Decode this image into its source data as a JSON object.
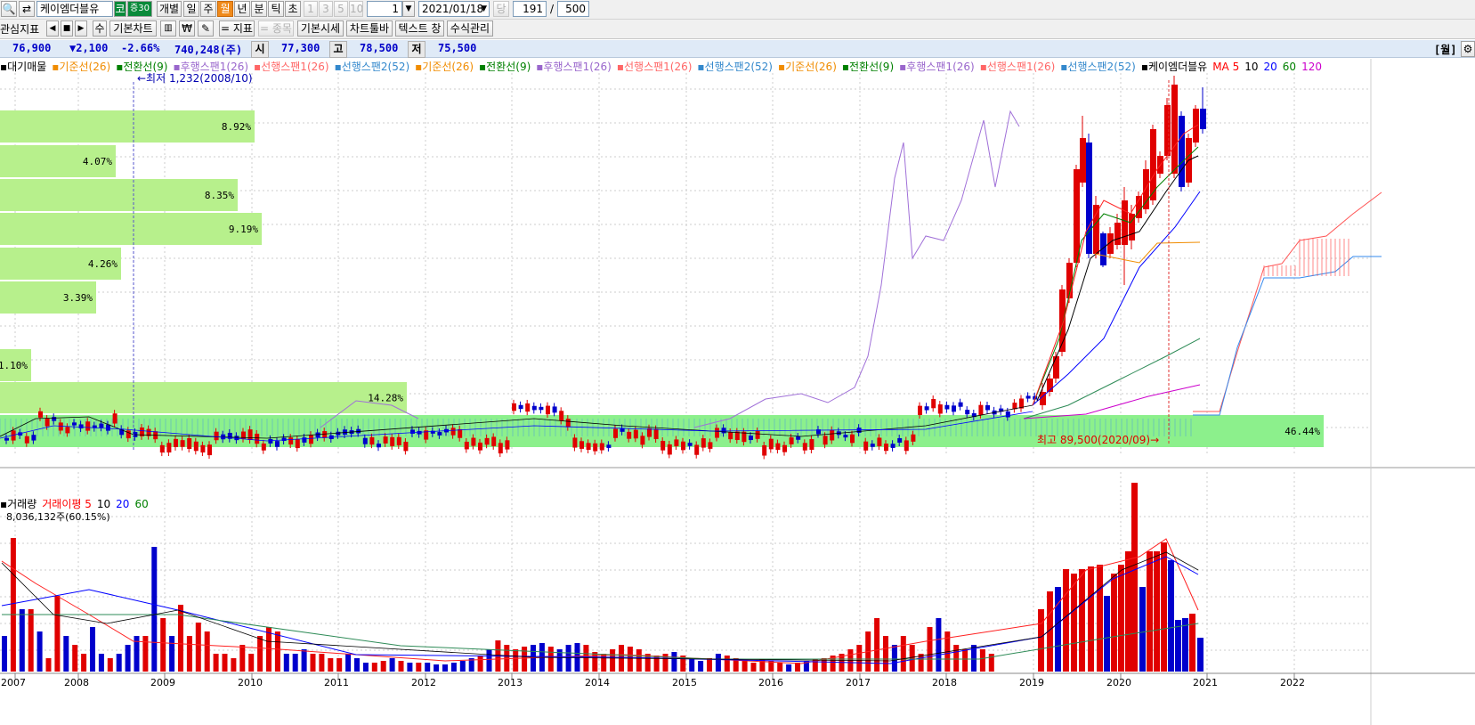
{
  "toolbar1": {
    "stock_name": "케이엠더블유",
    "market_badge": "코",
    "deposit_badge": "증30",
    "tabs": [
      "개별",
      "일",
      "주",
      "월",
      "년",
      "분",
      "틱",
      "초"
    ],
    "selected_tab": "월",
    "n_buttons": [
      "1",
      "3",
      "5",
      "10"
    ],
    "unit_select": "1",
    "date": "2021/01/18",
    "date_button": "당",
    "count": "191",
    "separator": "/",
    "total": "500"
  },
  "toolbar2": {
    "indicator_label": "관심지표",
    "basic_chart": "기본차트",
    "won_button": "₩",
    "minus_indicator": "= 지표",
    "minus_stock": "= 종목",
    "basic_quote": "기본시세",
    "chart_toolbar": "차트툴바",
    "text_window": "텍스트 창",
    "formula_manage": "수식관리",
    "sort_label": "수"
  },
  "quote": {
    "price": "76,900",
    "change": "▼2,100",
    "change_pct": "-2.66%",
    "volume": "740,248(주)",
    "open_label": "시",
    "open": "77,300",
    "high_label": "고",
    "high": "78,500",
    "low_label": "저",
    "low": "75,500",
    "period_label": "[월]"
  },
  "legend_price": [
    {
      "text": "대기매물",
      "color": "#000000"
    },
    {
      "text": "기준선(26)",
      "color": "#f08c00"
    },
    {
      "text": "전환선(9)",
      "color": "#008000"
    },
    {
      "text": "후행스팬1(26)",
      "color": "#9966cc"
    },
    {
      "text": "선행스팬1(26)",
      "color": "#ff6666"
    },
    {
      "text": "선행스팬2(52)",
      "color": "#3388cc"
    },
    {
      "text": "기준선(26)",
      "color": "#f08c00"
    },
    {
      "text": "전환선(9)",
      "color": "#008000"
    },
    {
      "text": "후행스팬1(26)",
      "color": "#9966cc"
    },
    {
      "text": "선행스팬1(26)",
      "color": "#ff6666"
    },
    {
      "text": "선행스팬2(52)",
      "color": "#3388cc"
    },
    {
      "text": "기준선(26)",
      "color": "#f08c00"
    },
    {
      "text": "전환선(9)",
      "color": "#008000"
    },
    {
      "text": "후행스팬1(26)",
      "color": "#9966cc"
    },
    {
      "text": "선행스팬1(26)",
      "color": "#ff6666"
    },
    {
      "text": "선행스팬2(52)",
      "color": "#3388cc"
    },
    {
      "text": "케이엠더블유",
      "color": "#000000"
    },
    {
      "text": "MA 5",
      "color": "#ff0000"
    },
    {
      "text": "10",
      "color": "#000000"
    },
    {
      "text": "20",
      "color": "#0000ff"
    },
    {
      "text": "60",
      "color": "#008000"
    },
    {
      "text": "120",
      "color": "#cc00cc"
    }
  ],
  "legend_volume": [
    {
      "text": "거래량",
      "color": "#000000"
    },
    {
      "text": "거래이평 5",
      "color": "#ff0000"
    },
    {
      "text": "10",
      "color": "#000000"
    },
    {
      "text": "20",
      "color": "#0000ff"
    },
    {
      "text": "60",
      "color": "#008000"
    }
  ],
  "volume_info": "8,036,132주(60.15%)",
  "annotations": {
    "low": "최저 1,232(2008/10)",
    "high": "최고 89,500(2020/09)"
  },
  "volume_profile": [
    "8.92%",
    "4.07%",
    "8.35%",
    "9.19%",
    "4.26%",
    "3.39%",
    "",
    "",
    "1.10%",
    "14.28%",
    "46.44%"
  ],
  "x_axis_years": [
    "2007",
    "2008",
    "2009",
    "2010",
    "2011",
    "2012",
    "2013",
    "2014",
    "2015",
    "2016",
    "2017",
    "2018",
    "2019",
    "2020",
    "2021",
    "2022"
  ],
  "colors": {
    "up": "#e00000",
    "down": "#0000cc",
    "profile": "#b7f08c",
    "profile_big": "#8cf08c",
    "grid": "#cccccc"
  },
  "chart_data": {
    "type": "candlestick",
    "price_range": [
      0,
      93000
    ],
    "ohlc_monthly_estimated": [
      {
        "t": "2008-10",
        "low": 1232
      },
      {
        "t": "2019-07",
        "close": 52000
      },
      {
        "t": "2020-09",
        "high": 89500
      },
      {
        "t": "2021-01",
        "open": 77300,
        "high": 78500,
        "low": 75500,
        "close": 76900
      }
    ],
    "volume_last": 740248
  }
}
